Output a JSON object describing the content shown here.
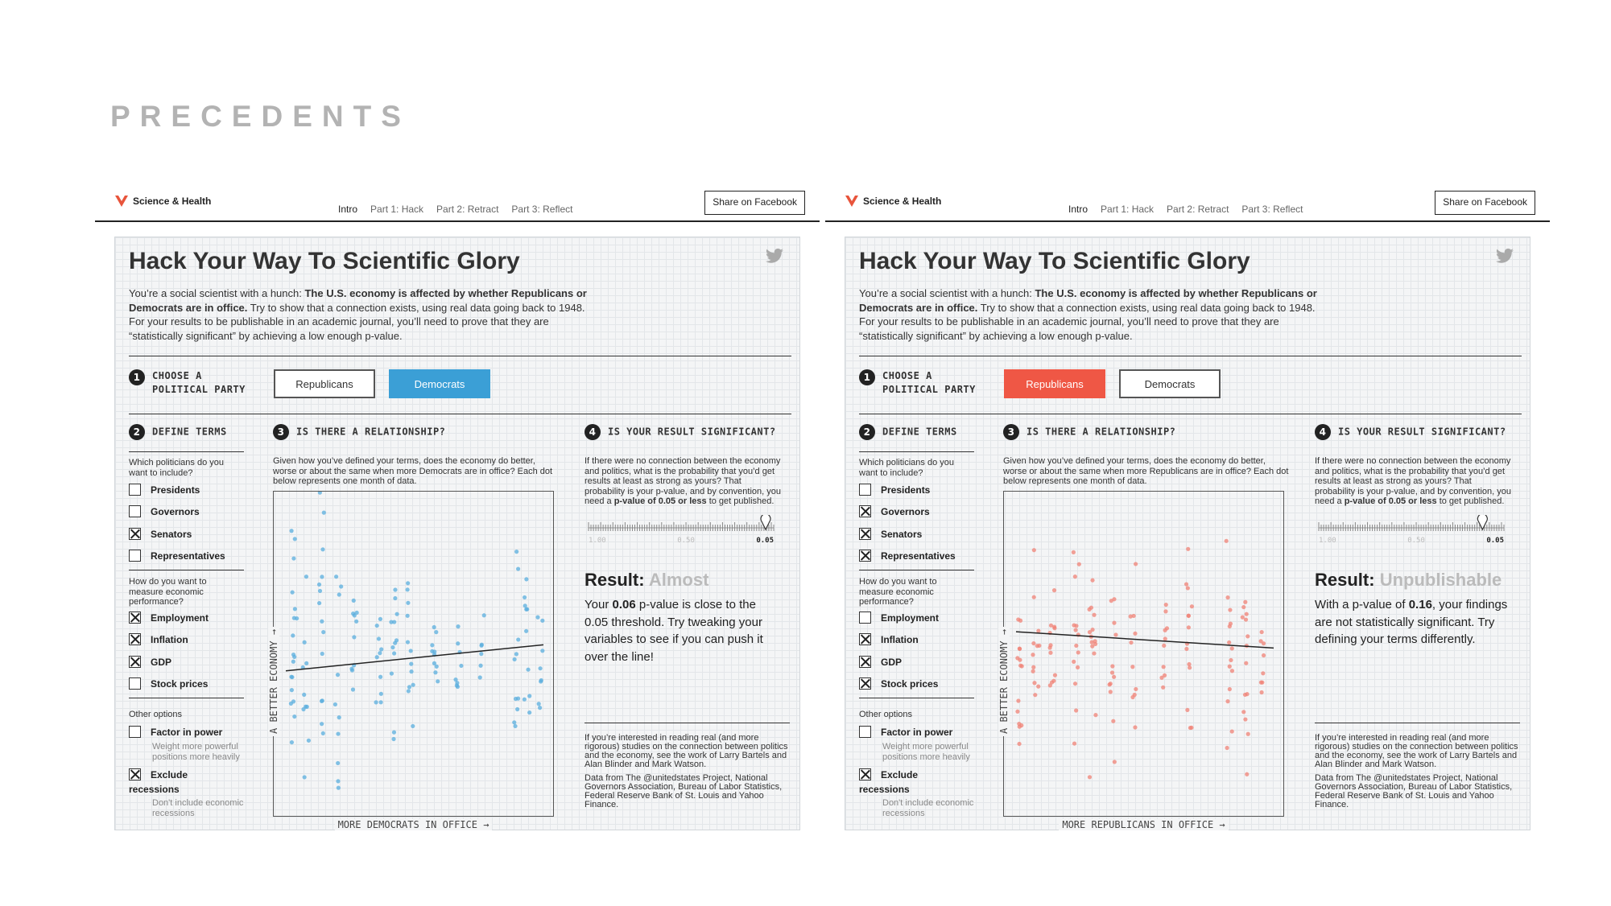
{
  "slide": {
    "title": "PRECEDENTS"
  },
  "panels": [
    {
      "nav": {
        "brand": "Science & Health",
        "tabs": [
          "Intro",
          "Part 1: Hack",
          "Part 2: Retract",
          "Part 3: Reflect"
        ],
        "share": "Share on Facebook"
      },
      "headline": "Hack Your Way To Scientific Glory",
      "intro": {
        "pre": "You’re a social scientist with a hunch: ",
        "bold": "The U.S. economy is affected by whether Republicans or Democrats are in office.",
        "post": " Try to show that a connection exists, using real data going back to 1948. For your results to be publishable in an academic journal, you’ll need to prove that they are “statistically significant” by achieving a low enough p-value."
      },
      "step1": {
        "num": "1",
        "line1": "CHOOSE A",
        "line2": "POLITICAL PARTY"
      },
      "party_buttons": [
        {
          "label": "Republicans",
          "selected": false
        },
        {
          "label": "Democrats",
          "selected": true
        }
      ],
      "step2": {
        "num": "2",
        "title": "DEFINE TERMS"
      },
      "politicians_q": "Which politicians do you want to include?",
      "politicians": [
        {
          "label": "Presidents",
          "checked": false
        },
        {
          "label": "Governors",
          "checked": false
        },
        {
          "label": "Senators",
          "checked": true
        },
        {
          "label": "Representatives",
          "checked": false
        }
      ],
      "economy_q": "How do you want to measure economic performance?",
      "economy": [
        {
          "label": "Employment",
          "checked": true
        },
        {
          "label": "Inflation",
          "checked": true
        },
        {
          "label": "GDP",
          "checked": true
        },
        {
          "label": "Stock prices",
          "checked": false
        }
      ],
      "other_label": "Other options",
      "other": [
        {
          "label": "Factor in power",
          "checked": false,
          "sub": "Weight more powerful positions more heavily"
        },
        {
          "label": "Exclude",
          "label2": "recessions",
          "checked": true,
          "sub": "Don't include economic recessions"
        }
      ],
      "step3": {
        "num": "3",
        "title": "IS THERE A RELATIONSHIP?"
      },
      "step3_text": "Given how you’ve defined your terms, does the economy do better, worse or about the same when more Democrats are in office? Each dot below represents one month of data.",
      "chart": {
        "xlabel": "MORE DEMOCRATS IN OFFICE →",
        "ylabel": "A BETTER ECONOMY →",
        "dot_color": "#5aaede"
      },
      "step4": {
        "num": "4",
        "title": "IS YOUR RESULT SIGNIFICANT?"
      },
      "step4_text": {
        "pre": "If there were no connection between the economy and politics, what is the probability that you’d get results at least as strong as yours? That probability is your p-value, and by convention, you need a ",
        "bold": "p-value of 0.05 or less",
        "post": " to get published."
      },
      "pscale": {
        "left": "1.00",
        "mid": "0.50",
        "right": "0.05",
        "pvalue": 0.06
      },
      "result": {
        "label": "Result: ",
        "status": "Almost"
      },
      "result_text": {
        "pre": "Your ",
        "bold": "0.06",
        "post": " p-value is close to the 0.05 threshold. Try tweaking your variables to see if you can push it over the line!"
      },
      "footer1": "If you’re interested in reading real (and more rigorous) studies on the connection between politics and the economy, see the work of Larry Bartels and Alan Blinder and Mark Watson.",
      "footer2": "Data from The @unitedstates Project, National Governors Association, Bureau of Labor Statistics, Federal Reserve Bank of St. Louis and Yahoo Finance."
    },
    {
      "nav": {
        "brand": "Science & Health",
        "tabs": [
          "Intro",
          "Part 1: Hack",
          "Part 2: Retract",
          "Part 3: Reflect"
        ],
        "share": "Share on Facebook"
      },
      "headline": "Hack Your Way To Scientific Glory",
      "intro": {
        "pre": "You’re a social scientist with a hunch: ",
        "bold": "The U.S. economy is affected by whether Republicans or Democrats are in office.",
        "post": " Try to show that a connection exists, using real data going back to 1948. For your results to be publishable in an academic journal, you’ll need to prove that they are “statistically significant” by achieving a low enough p-value."
      },
      "step1": {
        "num": "1",
        "line1": "CHOOSE A",
        "line2": "POLITICAL PARTY"
      },
      "party_buttons": [
        {
          "label": "Republicans",
          "selected": true
        },
        {
          "label": "Democrats",
          "selected": false
        }
      ],
      "step2": {
        "num": "2",
        "title": "DEFINE TERMS"
      },
      "politicians_q": "Which politicians do you want to include?",
      "politicians": [
        {
          "label": "Presidents",
          "checked": false
        },
        {
          "label": "Governors",
          "checked": true
        },
        {
          "label": "Senators",
          "checked": true
        },
        {
          "label": "Representatives",
          "checked": true
        }
      ],
      "economy_q": "How do you want to measure economic performance?",
      "economy": [
        {
          "label": "Employment",
          "checked": false
        },
        {
          "label": "Inflation",
          "checked": true
        },
        {
          "label": "GDP",
          "checked": true
        },
        {
          "label": "Stock prices",
          "checked": true
        }
      ],
      "other_label": "Other options",
      "other": [
        {
          "label": "Factor in power",
          "checked": false,
          "sub": "Weight more powerful positions more heavily"
        },
        {
          "label": "Exclude",
          "label2": "recessions",
          "checked": true,
          "sub": "Don't include economic recessions"
        }
      ],
      "step3": {
        "num": "3",
        "title": "IS THERE A RELATIONSHIP?"
      },
      "step3_text": "Given how you’ve defined your terms, does the economy do better, worse or about the same when more Republicans are in office? Each dot below represents one month of data.",
      "chart": {
        "xlabel": "MORE REPUBLICANS IN OFFICE →",
        "ylabel": "A BETTER ECONOMY →",
        "dot_color": "#f08276"
      },
      "step4": {
        "num": "4",
        "title": "IS YOUR RESULT SIGNIFICANT?"
      },
      "step4_text": {
        "pre": "If there were no connection between the economy and politics, what is the probability that you’d get results at least as strong as yours? That probability is your p-value, and by convention, you need a ",
        "bold": "p-value of 0.05 or less",
        "post": " to get published."
      },
      "pscale": {
        "left": "1.00",
        "mid": "0.50",
        "right": "0.05",
        "pvalue": 0.16
      },
      "result": {
        "label": "Result: ",
        "status": "Unpublishable"
      },
      "result_text": {
        "pre": "With a p-value of ",
        "bold": "0.16",
        "post": ", your findings are not statistically significant. Try defining your terms differently."
      },
      "footer1": "If you’re interested in reading real (and more rigorous) studies on the connection between politics and the economy, see the work of Larry Bartels and Alan Blinder and Mark Watson.",
      "footer2": "Data from The @unitedstates Project, National Governors Association, Bureau of Labor Statistics, Federal Reserve Bank of St. Louis and Yahoo Finance."
    }
  ]
}
